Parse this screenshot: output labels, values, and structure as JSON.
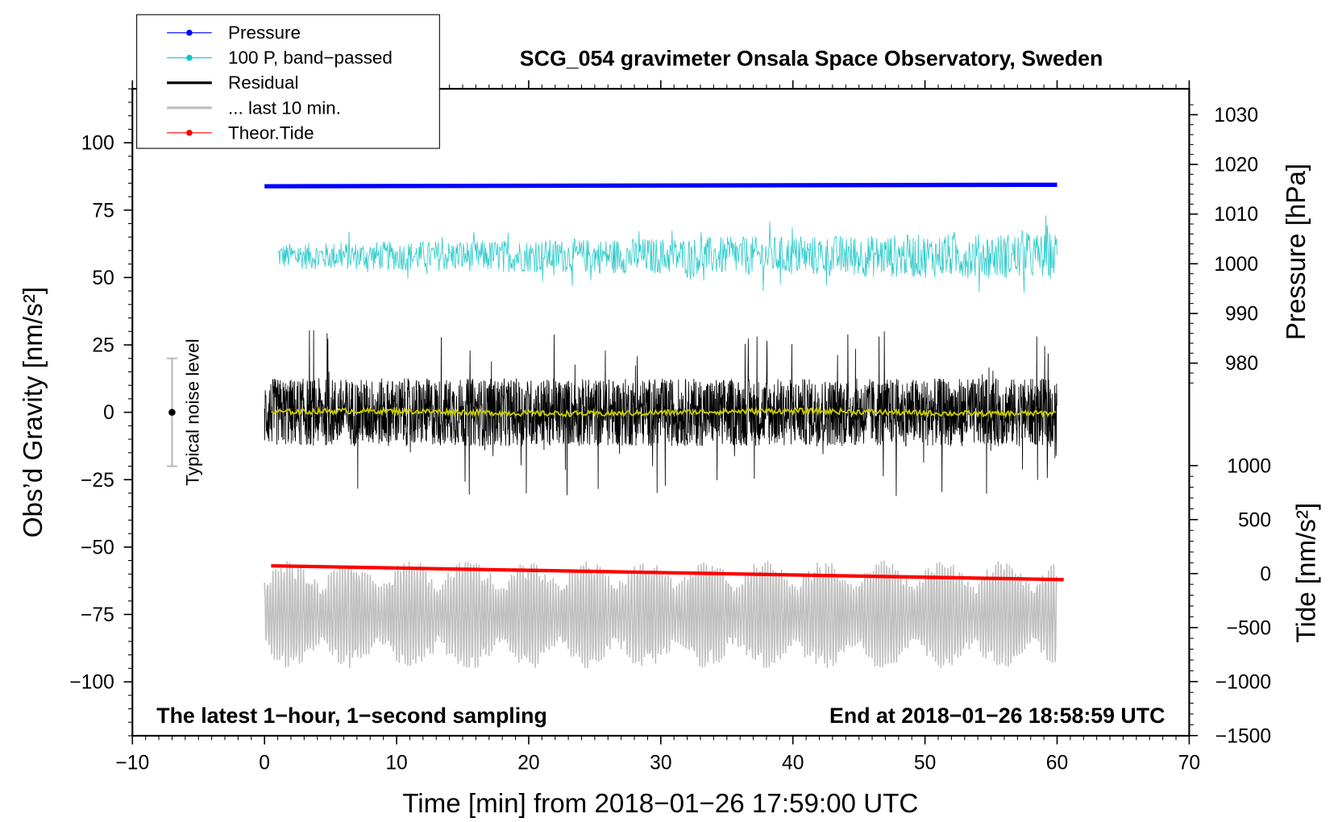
{
  "chart_data": {
    "type": "line",
    "title": "SCG_054 gravimeter Onsala Space Observatory, Sweden",
    "xlabel": "Time [min] from 2018−01−26 17:59:00 UTC",
    "ylabel_left": "Obs’d Gravity [nm/s²]",
    "ylabel_right_top": "Pressure [hPa]",
    "ylabel_right_bottom": "Tide [nm/s²]",
    "xlim": [
      -10,
      70
    ],
    "ylim_left": [
      -120,
      120
    ],
    "x_ticks": [
      "−10",
      "0",
      "10",
      "20",
      "30",
      "40",
      "50",
      "60",
      "70"
    ],
    "x_tick_values": [
      -10,
      0,
      10,
      20,
      30,
      40,
      50,
      60,
      70
    ],
    "left_ticks": [
      "100",
      "75",
      "50",
      "25",
      "0",
      "−25",
      "−50",
      "−75",
      "−100"
    ],
    "left_tick_values": [
      100,
      75,
      50,
      25,
      0,
      -25,
      -50,
      -75,
      -100
    ],
    "pressure_ticks": [
      "1030",
      "1020",
      "1010",
      "1000",
      "990",
      "980"
    ],
    "pressure_tick_values": [
      1030,
      1020,
      1010,
      1000,
      990,
      980
    ],
    "tide_ticks": [
      "1000",
      "500",
      "0",
      "−500",
      "−1000",
      "−1500"
    ],
    "tide_tick_values": [
      1000,
      500,
      0,
      -500,
      -1000,
      -1500
    ],
    "annotation_left": "The latest 1−hour, 1−second sampling",
    "annotation_right": "End at 2018−01−26 18:58:59 UTC",
    "noise_label": "Typical noise level",
    "noise_bar": {
      "x": -7,
      "center": 0,
      "low": -20,
      "high": 20
    },
    "legend": [
      {
        "label": "Pressure",
        "color": "#0000ff"
      },
      {
        "label": "100 P, band−passed",
        "color": "#00c8c8"
      },
      {
        "label": "Residual",
        "color": "#000000"
      },
      {
        "label": "... last 10 min.",
        "color": "#c0c0c0"
      },
      {
        "label": "Theor.Tide",
        "color": "#ff0000"
      }
    ],
    "series": [
      {
        "name": "Pressure",
        "axis": "pressure",
        "x_range": [
          0,
          60
        ],
        "start": 1015.6,
        "end": 1015.9,
        "color": "#0000ff"
      },
      {
        "name": "100 P, band-passed",
        "axis": "left",
        "x_range": [
          1,
          60
        ],
        "center": 58,
        "amplitude": 8,
        "color": "#33cccc"
      },
      {
        "name": "Residual",
        "axis": "left",
        "x_range": [
          0,
          60
        ],
        "center": 0,
        "amplitude": 14,
        "max": 35,
        "min": -34,
        "color": "#000000"
      },
      {
        "name": "Residual smoothed",
        "axis": "left",
        "x_range": [
          0.5,
          60
        ],
        "center": 0,
        "amplitude": 1,
        "color": "#c8c800"
      },
      {
        "name": "... last 10 min.",
        "axis": "left",
        "x_range": [
          0,
          60
        ],
        "center": -75,
        "amplitude": 20,
        "color": "#c0c0c0"
      },
      {
        "name": "Theor.Tide",
        "axis": "tide",
        "x_range": [
          0.5,
          60.5
        ],
        "start": 72,
        "end": -56,
        "color": "#ff0000"
      }
    ]
  }
}
